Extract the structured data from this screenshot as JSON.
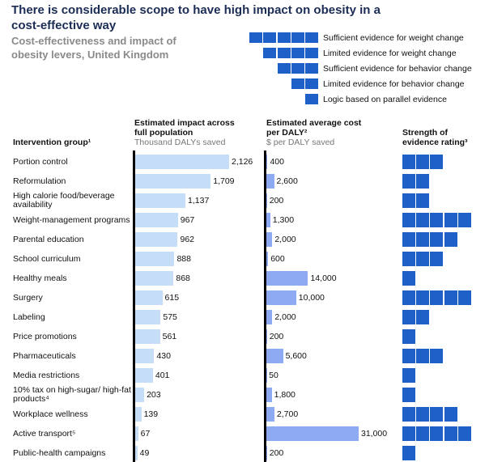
{
  "chart_data": {
    "type": "bar",
    "title": "There is considerable scope to have high impact on obesity in a cost-effective way",
    "subtitle": "Cost-effectiveness and impact of obesity levers, United Kingdom",
    "category_header": "Intervention group¹",
    "categories": [
      "Portion control",
      "Reformulation",
      "High calorie food/beverage availability",
      "Weight-management programs",
      "Parental education",
      "School curriculum",
      "Healthy meals",
      "Surgery",
      "Labeling",
      "Price promotions",
      "Pharmaceuticals",
      "Media restrictions",
      "10% tax on high-sugar/ high-fat products⁴",
      "Workplace wellness",
      "Active transport⁵",
      "Public-health campaigns"
    ],
    "series": [
      {
        "name": "Estimated impact across full population",
        "unit": "Thousand DALYs saved",
        "color": "#c6ddf8",
        "values": [
          2126,
          1709,
          1137,
          967,
          962,
          888,
          868,
          615,
          575,
          561,
          430,
          401,
          203,
          139,
          67,
          49
        ],
        "value_labels": [
          "2,126",
          "1,709",
          "1,137",
          "967",
          "962",
          "888",
          "868",
          "615",
          "575",
          "561",
          "430",
          "401",
          "203",
          "139",
          "67",
          "49"
        ]
      },
      {
        "name": "Estimated average cost per DALY²",
        "unit": "$ per DALY saved",
        "color": "#8eaaf2",
        "values": [
          400,
          2600,
          200,
          1300,
          2000,
          600,
          14000,
          10000,
          2000,
          200,
          5600,
          50,
          1800,
          2700,
          31000,
          200
        ],
        "value_labels": [
          "400",
          "2,600",
          "200",
          "1,300",
          "2,000",
          "600",
          "14,000",
          "10,000",
          "2,000",
          "200",
          "5,600",
          "50",
          "1,800",
          "2,700",
          "31,000",
          "200"
        ]
      }
    ],
    "evidence": {
      "name": "Strength of evidence rating³",
      "color": "#1f5fc8",
      "values": [
        3,
        2,
        2,
        5,
        4,
        3,
        1,
        5,
        2,
        1,
        3,
        1,
        1,
        4,
        5,
        1
      ],
      "legend": [
        {
          "blocks": 5,
          "label": "Sufficient evidence for weight change"
        },
        {
          "blocks": 4,
          "label": "Limited evidence for weight change"
        },
        {
          "blocks": 3,
          "label": "Sufficient evidence for behavior change"
        },
        {
          "blocks": 2,
          "label": "Limited evidence for behavior change"
        },
        {
          "blocks": 1,
          "label": "Logic based on parallel evidence"
        }
      ]
    }
  }
}
